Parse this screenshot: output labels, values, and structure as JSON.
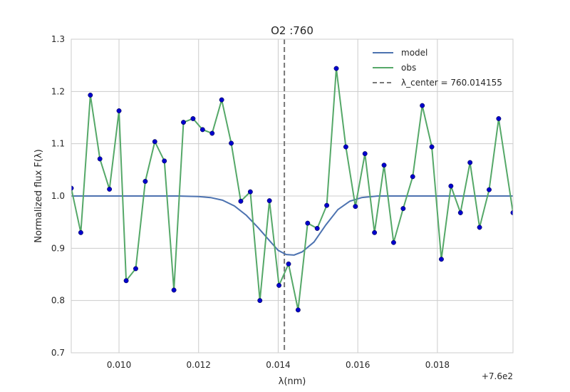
{
  "chart_data": {
    "type": "line",
    "title": "O2 :760",
    "xlabel": "λ(nm)",
    "ylabel": "Normalized flux F(λ)",
    "x_offset_text": "+7.6e2",
    "xlim": [
      760.0088,
      760.0199
    ],
    "ylim": [
      0.7,
      1.3
    ],
    "x_ticks": [
      760.01,
      760.012,
      760.014,
      760.016,
      760.018
    ],
    "x_tick_labels": [
      "0.010",
      "0.012",
      "0.014",
      "0.016",
      "0.018"
    ],
    "y_ticks": [
      0.7,
      0.8,
      0.9,
      1.0,
      1.1,
      1.2,
      1.3
    ],
    "y_tick_labels": [
      "0.7",
      "0.8",
      "0.9",
      "1.0",
      "1.1",
      "1.2",
      "1.3"
    ],
    "grid": true,
    "legend_position": "top-right",
    "center_line": {
      "x": 760.014155,
      "label": "λ_center = 760.014155",
      "color": "#777777"
    },
    "series": [
      {
        "name": "model",
        "color": "#4c72b0",
        "x": [
          760.0088,
          760.009,
          760.01,
          760.011,
          760.0115,
          760.012,
          760.0123,
          760.0126,
          760.0129,
          760.0132,
          760.0135,
          760.0138,
          760.014,
          760.0142,
          760.0144,
          760.0146,
          760.0149,
          760.0152,
          760.0155,
          760.0158,
          760.0161,
          760.0165,
          760.017,
          760.0199
        ],
        "y": [
          1.0,
          1.0,
          1.0,
          1.0,
          1.0,
          0.999,
          0.997,
          0.992,
          0.981,
          0.963,
          0.939,
          0.913,
          0.896,
          0.888,
          0.887,
          0.893,
          0.912,
          0.945,
          0.974,
          0.99,
          0.997,
          1.0,
          1.0,
          1.0
        ]
      },
      {
        "name": "obs",
        "color": "#55a868",
        "marker_color": "#0000cc",
        "x": [
          760.0088,
          760.00904,
          760.00928,
          760.00952,
          760.00976,
          760.01,
          760.01018,
          760.01042,
          760.01066,
          760.0109,
          760.01114,
          760.01138,
          760.01162,
          760.01186,
          760.0121,
          760.01234,
          760.01258,
          760.01282,
          760.01306,
          760.0133,
          760.01354,
          760.01378,
          760.01402,
          760.01426,
          760.0145,
          760.01474,
          760.01498,
          760.01522,
          760.01546,
          760.0157,
          760.01594,
          760.01618,
          760.01642,
          760.01666,
          760.0169,
          760.01714,
          760.01738,
          760.01762,
          760.01786,
          760.0181,
          760.01834,
          760.01858,
          760.01882,
          760.01906,
          760.0193,
          760.01954,
          760.0199
        ],
        "y": [
          1.015,
          0.93,
          1.193,
          1.071,
          1.013,
          1.163,
          0.838,
          0.861,
          1.028,
          1.104,
          1.067,
          0.82,
          1.141,
          1.148,
          1.127,
          1.12,
          1.184,
          1.101,
          0.99,
          1.008,
          0.8,
          0.991,
          0.829,
          0.87,
          0.782,
          0.948,
          0.938,
          0.982,
          1.244,
          1.094,
          0.98,
          1.081,
          0.93,
          1.059,
          0.911,
          0.976,
          1.037,
          1.173,
          1.094,
          0.879,
          1.019,
          0.968,
          1.064,
          0.94,
          1.012,
          1.148,
          0.968
        ]
      }
    ]
  }
}
